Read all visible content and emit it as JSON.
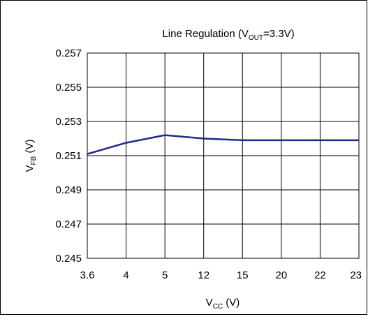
{
  "chart_data": {
    "type": "line",
    "title": "Line Regulation (V",
    "title_sub": "OUT",
    "title_tail": "=3.3V)",
    "xlabel": "V",
    "xlabel_sub": "CC",
    "xlabel_tail": " (V)",
    "ylabel": "V",
    "ylabel_sub": "FB",
    "ylabel_tail": " (V)",
    "categories": [
      "3.6",
      "4",
      "5",
      "12",
      "15",
      "20",
      "22",
      "23"
    ],
    "yticks": [
      "0.257",
      "0.255",
      "0.253",
      "0.251",
      "0.249",
      "0.247",
      "0.245"
    ],
    "ylim": [
      0.245,
      0.257
    ],
    "grid": true,
    "series": [
      {
        "values": [
          0.2511,
          0.25175,
          0.2522,
          0.252,
          0.2519,
          0.2519,
          0.2519,
          0.2519
        ],
        "color": "#1f2a8c"
      }
    ]
  }
}
